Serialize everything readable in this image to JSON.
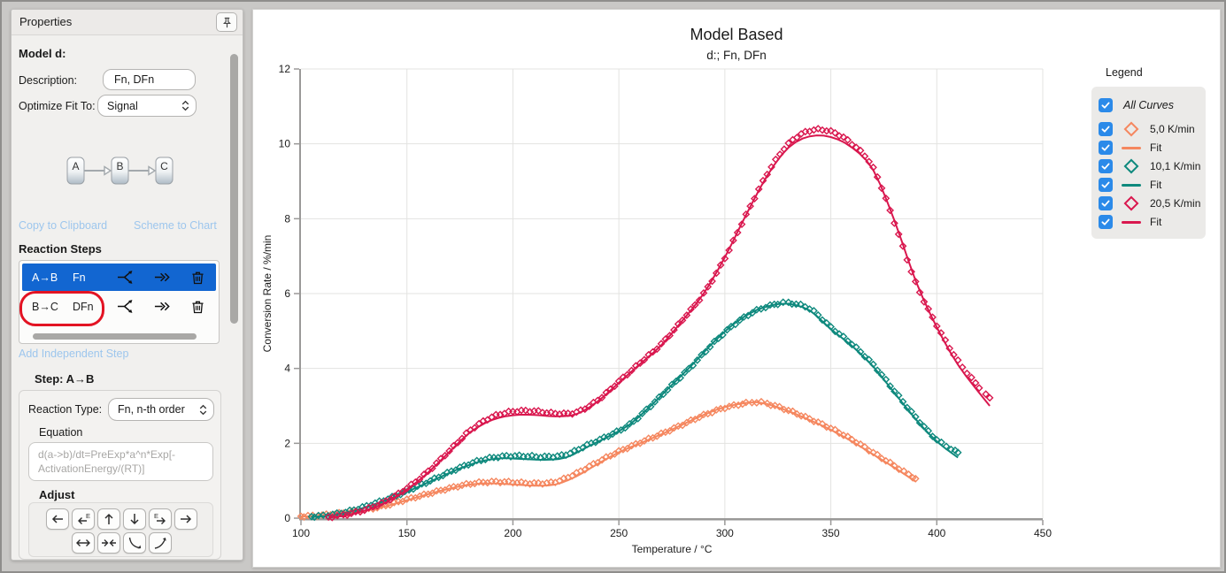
{
  "panel": {
    "title": "Properties",
    "model_label": "Model d:",
    "description_label": "Description:",
    "description_value": "Fn, DFn",
    "optimize_label": "Optimize Fit To:",
    "optimize_value": "Signal",
    "scheme_nodes": [
      "A",
      "B",
      "C"
    ],
    "links": {
      "copy": "Copy to Clipboard",
      "scheme": "Scheme to Chart",
      "add_step": "Add Independent Step"
    },
    "reaction_steps_label": "Reaction Steps",
    "steps": [
      {
        "route": "A→B",
        "type": "Fn",
        "selected": true
      },
      {
        "route": "B→C",
        "type": "DFn",
        "selected": false,
        "annotated": true
      }
    ],
    "step_header": "Step: A→B",
    "reaction_type_label": "Reaction Type:",
    "reaction_type_value": "Fn, n-th order",
    "equation_label": "Equation",
    "equation_value": "d(a->b)/dt=PreExp*a^n*Exp[-ActivationEnergy/(RT)]",
    "adjust_label": "Adjust"
  },
  "chart": {
    "title": "Model Based",
    "subtitle": "d:; Fn, DFn",
    "xlabel": "Temperature / °C",
    "ylabel": "Conversion Rate / %/min"
  },
  "legend": {
    "title": "Legend",
    "all_curves": "All Curves",
    "checkbox_color": "#2b8ae9",
    "items": [
      {
        "label": "5,0 K/min",
        "swatch": "diamond",
        "color": "#f5875f"
      },
      {
        "label": "Fit",
        "swatch": "line",
        "color": "#f5875f"
      },
      {
        "label": "10,1 K/min",
        "swatch": "diamond",
        "color": "#0e897d"
      },
      {
        "label": "Fit",
        "swatch": "line",
        "color": "#0e897d"
      },
      {
        "label": "20,5 K/min",
        "swatch": "diamond",
        "color": "#d9174e"
      },
      {
        "label": "Fit",
        "swatch": "line",
        "color": "#d9174e"
      }
    ]
  },
  "chart_data": {
    "type": "line",
    "title": "Model Based",
    "subtitle": "d:; Fn, DFn",
    "xlabel": "Temperature / °C",
    "ylabel": "Conversion Rate / %/min",
    "xlim": [
      100,
      450
    ],
    "ylim": [
      0,
      12
    ],
    "xticks": [
      100,
      150,
      200,
      250,
      300,
      350,
      400,
      450
    ],
    "yticks": [
      0,
      2,
      4,
      6,
      8,
      10,
      12
    ],
    "grid": true,
    "legend_position": "right",
    "series": [
      {
        "name": "5,0 K/min",
        "role": "data",
        "marker": "diamond",
        "color": "#f5875f",
        "x": [
          100,
          110,
          120,
          130,
          140,
          150,
          160,
          170,
          180,
          190,
          200,
          210,
          220,
          230,
          240,
          250,
          260,
          270,
          280,
          290,
          300,
          310,
          315,
          320,
          330,
          340,
          350,
          360,
          370,
          380,
          390
        ],
        "y": [
          0.05,
          0.08,
          0.14,
          0.22,
          0.34,
          0.5,
          0.65,
          0.8,
          0.92,
          0.97,
          0.96,
          0.93,
          0.97,
          1.2,
          1.5,
          1.78,
          2.02,
          2.25,
          2.5,
          2.75,
          2.95,
          3.07,
          3.1,
          3.06,
          2.88,
          2.65,
          2.4,
          2.1,
          1.75,
          1.4,
          1.05
        ]
      },
      {
        "name": "Fit",
        "role": "fit",
        "color": "#f5875f",
        "x": [
          100,
          110,
          120,
          130,
          140,
          150,
          160,
          170,
          180,
          190,
          200,
          210,
          220,
          230,
          240,
          250,
          260,
          270,
          280,
          290,
          300,
          310,
          315,
          320,
          330,
          340,
          350,
          360,
          370,
          380,
          390
        ],
        "y": [
          0.04,
          0.07,
          0.12,
          0.2,
          0.32,
          0.48,
          0.64,
          0.79,
          0.9,
          0.93,
          0.9,
          0.87,
          0.9,
          1.12,
          1.45,
          1.76,
          2.0,
          2.24,
          2.5,
          2.76,
          2.97,
          3.08,
          3.1,
          3.05,
          2.86,
          2.62,
          2.36,
          2.05,
          1.7,
          1.35,
          0.98
        ]
      },
      {
        "name": "10,1 K/min",
        "role": "data",
        "marker": "diamond",
        "color": "#0e897d",
        "x": [
          105,
          115,
          125,
          135,
          145,
          155,
          165,
          175,
          185,
          195,
          205,
          215,
          225,
          235,
          245,
          255,
          265,
          275,
          285,
          295,
          305,
          315,
          325,
          330,
          340,
          350,
          360,
          370,
          380,
          390,
          400,
          410
        ],
        "y": [
          0.04,
          0.1,
          0.22,
          0.4,
          0.6,
          0.85,
          1.1,
          1.35,
          1.55,
          1.65,
          1.66,
          1.64,
          1.7,
          1.95,
          2.2,
          2.5,
          3.0,
          3.55,
          4.1,
          4.7,
          5.2,
          5.55,
          5.73,
          5.75,
          5.6,
          5.1,
          4.65,
          4.1,
          3.4,
          2.7,
          2.1,
          1.75
        ]
      },
      {
        "name": "Fit",
        "role": "fit",
        "color": "#0e897d",
        "x": [
          105,
          115,
          125,
          135,
          145,
          155,
          165,
          175,
          185,
          195,
          205,
          215,
          225,
          235,
          245,
          255,
          265,
          275,
          285,
          295,
          305,
          315,
          325,
          330,
          340,
          350,
          360,
          370,
          380,
          390,
          400,
          410
        ],
        "y": [
          0.03,
          0.08,
          0.2,
          0.38,
          0.58,
          0.83,
          1.08,
          1.33,
          1.52,
          1.6,
          1.58,
          1.56,
          1.62,
          1.9,
          2.18,
          2.5,
          3.0,
          3.56,
          4.12,
          4.72,
          5.22,
          5.56,
          5.72,
          5.73,
          5.55,
          5.05,
          4.6,
          4.05,
          3.35,
          2.65,
          2.05,
          1.62
        ]
      },
      {
        "name": "20,5 K/min",
        "role": "data",
        "marker": "diamond",
        "color": "#d9174e",
        "x": [
          113,
          120,
          130,
          140,
          150,
          160,
          170,
          180,
          190,
          200,
          210,
          220,
          230,
          240,
          250,
          260,
          270,
          280,
          290,
          300,
          310,
          320,
          330,
          340,
          350,
          360,
          370,
          380,
          390,
          400,
          410,
          420,
          425
        ],
        "y": [
          0.03,
          0.08,
          0.22,
          0.45,
          0.8,
          1.25,
          1.8,
          2.35,
          2.7,
          2.85,
          2.86,
          2.8,
          2.83,
          3.15,
          3.65,
          4.15,
          4.65,
          5.3,
          6.0,
          6.95,
          8.1,
          9.2,
          10.0,
          10.35,
          10.33,
          10.0,
          9.35,
          7.9,
          6.3,
          5.15,
          4.2,
          3.5,
          3.2
        ]
      },
      {
        "name": "Fit",
        "role": "fit",
        "color": "#d9174e",
        "x": [
          113,
          120,
          130,
          140,
          150,
          160,
          170,
          180,
          190,
          200,
          210,
          220,
          230,
          240,
          250,
          260,
          270,
          280,
          290,
          300,
          310,
          320,
          330,
          340,
          350,
          360,
          370,
          380,
          390,
          400,
          410,
          420,
          425
        ],
        "y": [
          0.02,
          0.06,
          0.2,
          0.42,
          0.77,
          1.22,
          1.77,
          2.3,
          2.62,
          2.75,
          2.76,
          2.72,
          2.78,
          3.12,
          3.62,
          4.12,
          4.62,
          5.28,
          6.0,
          6.97,
          8.1,
          9.15,
          9.9,
          10.2,
          10.18,
          9.9,
          9.3,
          7.95,
          6.35,
          5.1,
          4.1,
          3.35,
          3.0
        ]
      }
    ]
  }
}
